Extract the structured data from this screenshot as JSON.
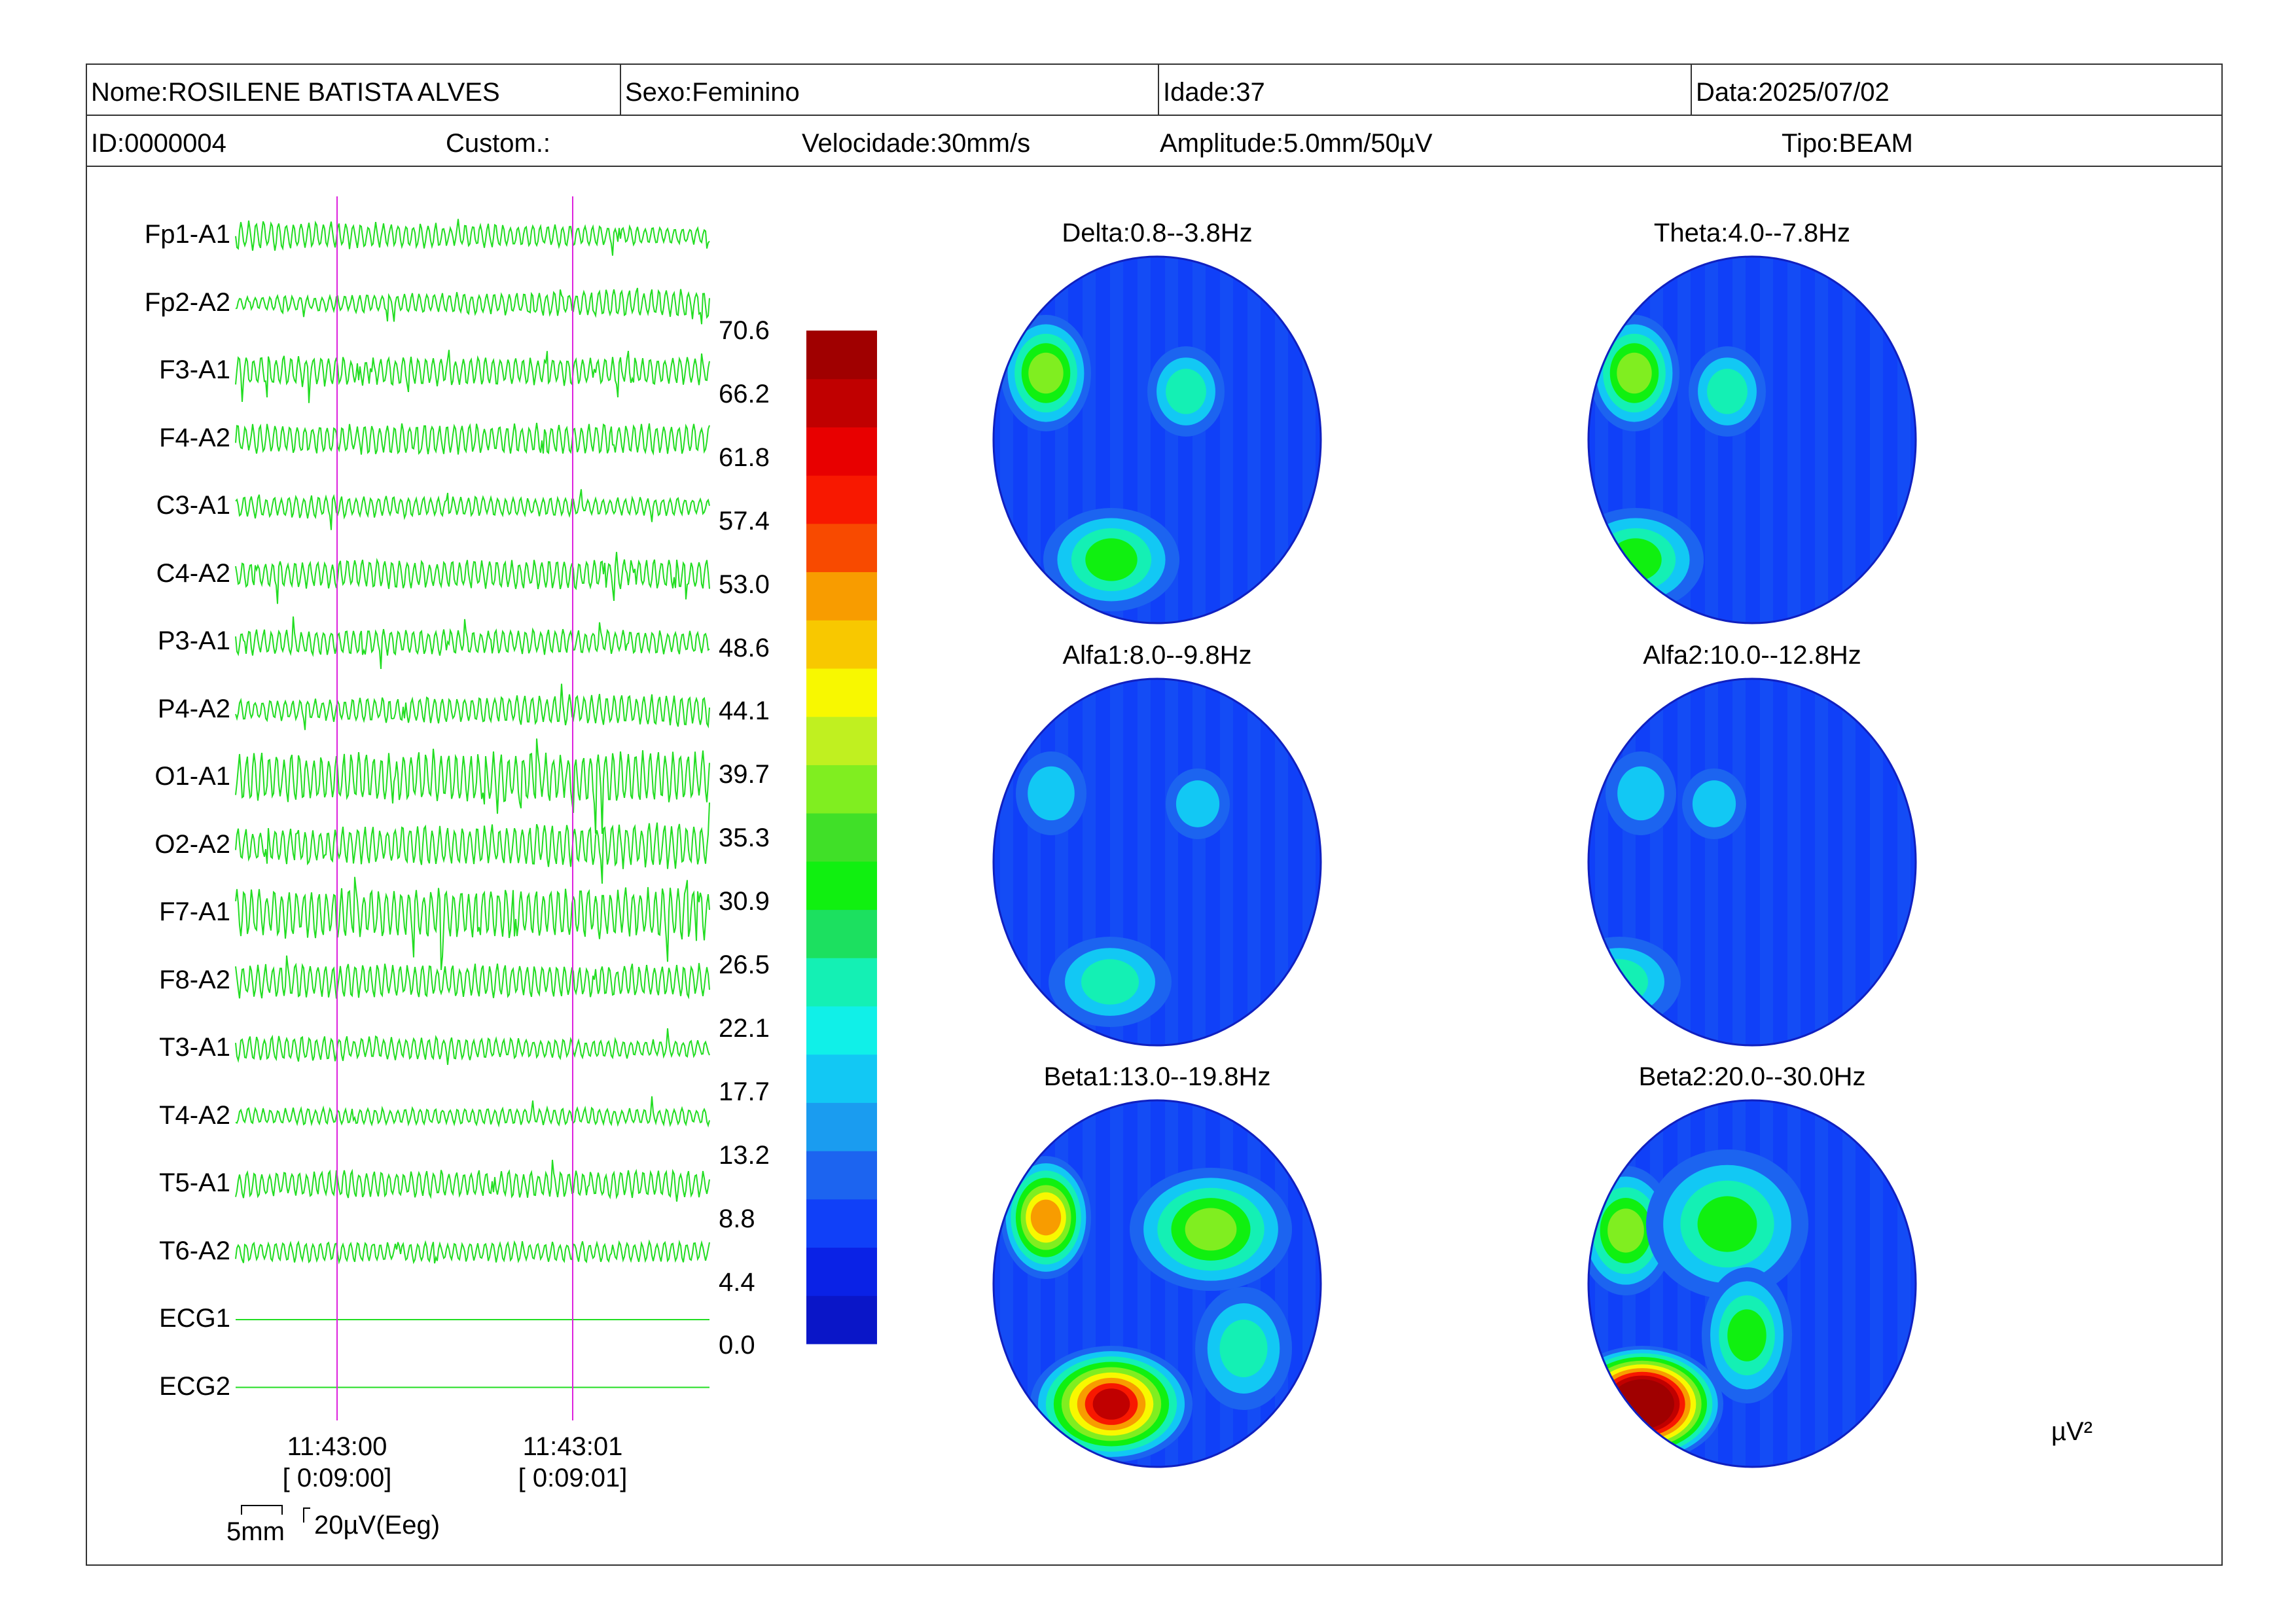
{
  "header": {
    "nome": "Nome:ROSILENE BATISTA ALVES",
    "sexo": "Sexo:Feminino",
    "idade": "Idade:37",
    "data": "Data:2025/07/02",
    "id": "ID:0000004",
    "custom": "Custom.:",
    "velocidade": "Velocidade:30mm/s",
    "amplitude": "Amplitude:5.0mm/50µV",
    "tipo": "Tipo:BEAM"
  },
  "channels": [
    "Fp1-A1",
    "Fp2-A2",
    "F3-A1",
    "F4-A2",
    "C3-A1",
    "C4-A2",
    "P3-A1",
    "P4-A2",
    "O1-A1",
    "O2-A2",
    "F7-A1",
    "F8-A2",
    "T3-A1",
    "T4-A2",
    "T5-A1",
    "T6-A2",
    "ECG1",
    "ECG2"
  ],
  "colors": {
    "trace": "#22dd22",
    "marker": "#dd22dd",
    "scale": [
      "#0a16c8",
      "#0a22e6",
      "#1040f8",
      "#1c64f0",
      "#1a9cf0",
      "#12c8f4",
      "#10f0e8",
      "#14f0b4",
      "#1ce060",
      "#10f010",
      "#40e028",
      "#80ee20",
      "#c0f020",
      "#f8f800",
      "#f8c800",
      "#f89c00",
      "#f84a00",
      "#f81800",
      "#e80000",
      "#c00000",
      "#a00000"
    ]
  },
  "color_scale": {
    "labels": [
      "70.6",
      "66.2",
      "61.8",
      "57.4",
      "53.0",
      "48.6",
      "44.1",
      "39.7",
      "35.3",
      "30.9",
      "26.5",
      "22.1",
      "17.7",
      "13.2",
      "8.8",
      "4.4",
      "0.0"
    ],
    "unit": "µV²"
  },
  "maps": [
    {
      "title": "Delta:0.8--3.8Hz"
    },
    {
      "title": "Theta:4.0--7.8Hz"
    },
    {
      "title": "Alfa1:8.0--9.8Hz"
    },
    {
      "title": "Alfa2:10.0--12.8Hz"
    },
    {
      "title": "Beta1:13.0--19.8Hz"
    },
    {
      "title": "Beta2:20.0--30.0Hz"
    }
  ],
  "time_markers": [
    {
      "time": "11:43:00",
      "elapsed": "[ 0:09:00]"
    },
    {
      "time": "11:43:01",
      "elapsed": "[ 0:09:01]"
    }
  ],
  "calibration": {
    "time_scale": "5mm",
    "amp_scale": "20µV(Eeg)"
  }
}
